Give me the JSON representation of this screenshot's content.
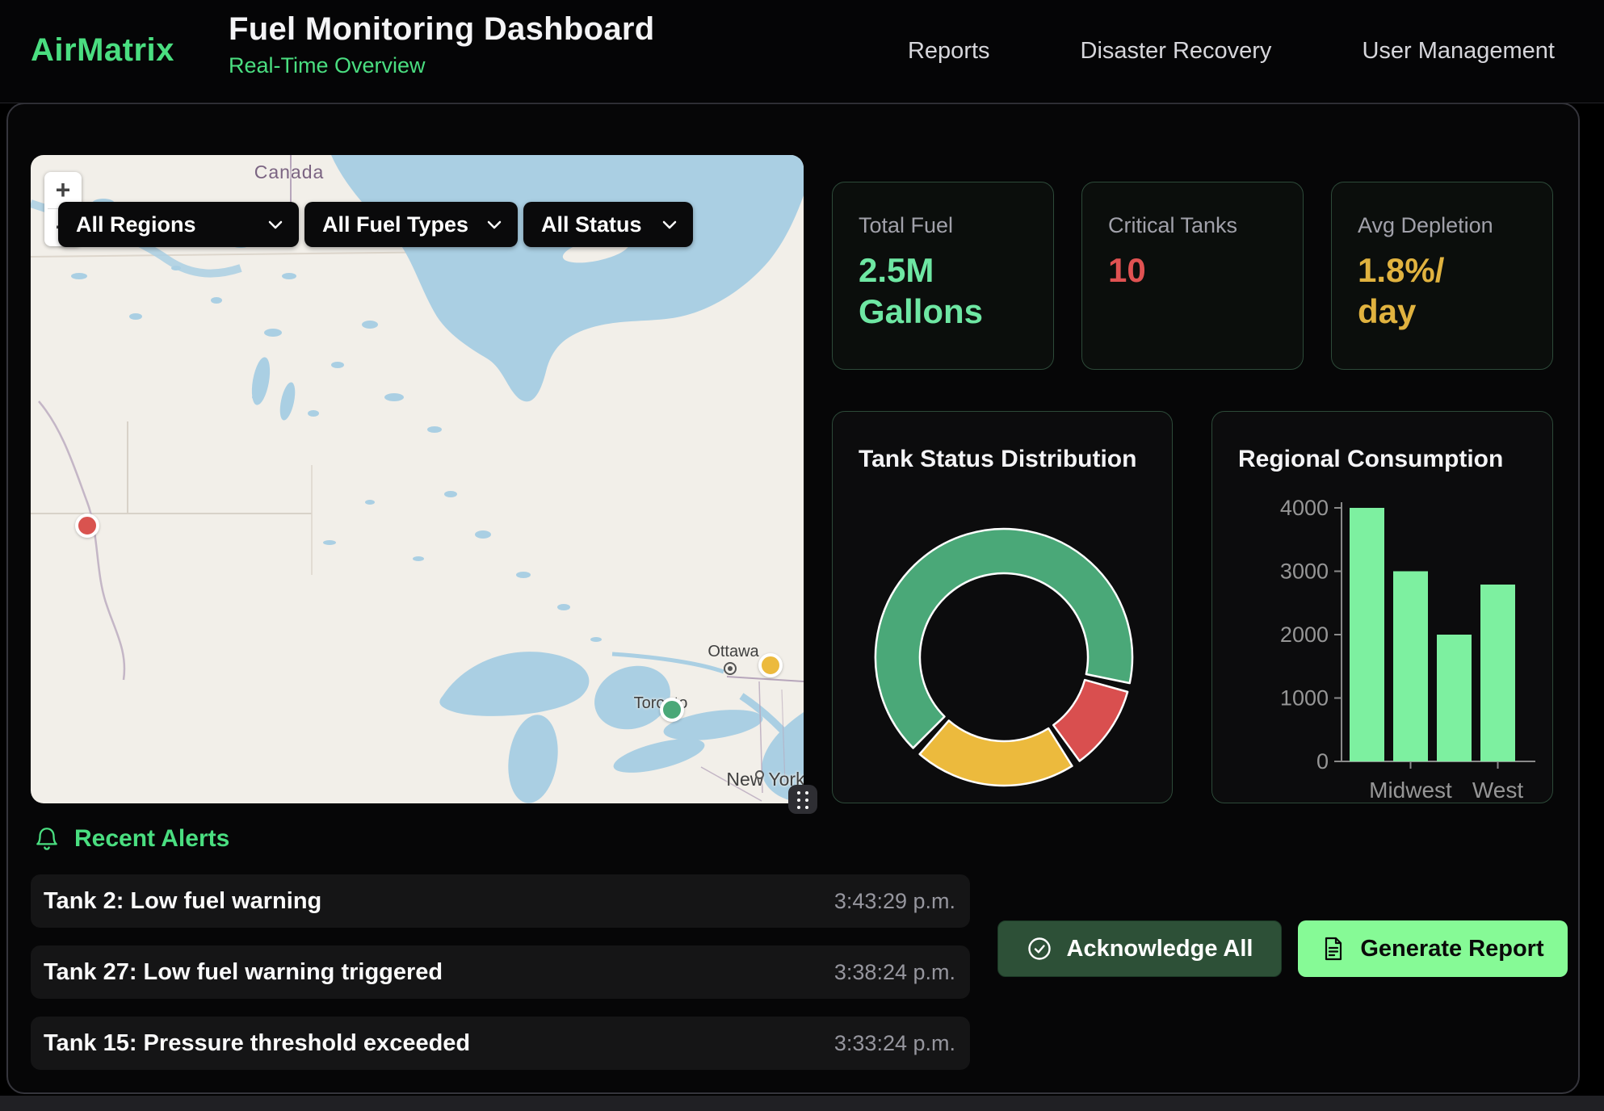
{
  "header": {
    "logo": "AirMatrix",
    "title": "Fuel Monitoring Dashboard",
    "subtitle": "Real-Time Overview",
    "nav": [
      {
        "label": "Reports"
      },
      {
        "label": "Disaster Recovery"
      },
      {
        "label": "User Management"
      }
    ]
  },
  "map": {
    "filters": [
      {
        "label": "All Regions"
      },
      {
        "label": "All Fuel Types"
      },
      {
        "label": "All Status"
      }
    ],
    "zoom_in_label": "+",
    "zoom_out_label": "−",
    "place_labels": {
      "country": "Canada",
      "ottawa": "Ottawa",
      "toronto": "Toronto",
      "new_york": "New York"
    },
    "markers": [
      {
        "status": "critical",
        "color": "#d9534f"
      },
      {
        "status": "warning",
        "color": "#ecba3d"
      },
      {
        "status": "normal",
        "color": "#4aa878"
      }
    ]
  },
  "stats": [
    {
      "label": "Total Fuel",
      "value": "2.5M Gallons",
      "color": "#6ee7a3"
    },
    {
      "label": "Critical Tanks",
      "value": "10",
      "color": "#e05252"
    },
    {
      "label": "Avg Depletion",
      "value": "1.8%/day",
      "color": "#e0b23f"
    }
  ],
  "chart_data": [
    {
      "type": "pie",
      "donut": true,
      "title": "Tank Status Distribution",
      "start_angle_deg": 225,
      "gap_deg": 4,
      "border_color": "#ffffff",
      "legend": "none",
      "segments": [
        {
          "name": "green-normal",
          "percent": 68,
          "color": "#4aa878"
        },
        {
          "name": "red-critical",
          "percent": 11,
          "color": "#d94f4f"
        },
        {
          "name": "yellow-warning",
          "percent": 21,
          "color": "#ecba3d"
        }
      ]
    },
    {
      "type": "bar",
      "title": "Regional Consumption",
      "categories": [
        "",
        "Midwest",
        "",
        "West"
      ],
      "values": [
        4000,
        3000,
        2000,
        2790
      ],
      "bar_color": "#7df0a0",
      "ylim": [
        0,
        4000
      ],
      "yticks": [
        0,
        1000,
        2000,
        3000,
        4000
      ],
      "grid": false,
      "axis_color": "#8a8a8a",
      "tick_label_color": "#969696"
    }
  ],
  "alerts": {
    "heading": "Recent Alerts",
    "items": [
      {
        "message": "Tank 2: Low fuel warning",
        "time": "3:43:29 p.m."
      },
      {
        "message": "Tank 27: Low fuel warning triggered",
        "time": "3:38:24 p.m."
      },
      {
        "message": "Tank 15: Pressure threshold exceeded",
        "time": "3:33:24 p.m."
      }
    ]
  },
  "actions": {
    "acknowledge_all": "Acknowledge All",
    "generate_report": "Generate Report"
  },
  "colors": {
    "accent_green": "#4ade80",
    "value_green": "#6ee7a3",
    "critical_red": "#e05252",
    "warning_yellow": "#e0b23f",
    "button_dark_green": "#2d5037",
    "button_light_green": "#86fa96",
    "map_land": "#f2efe9",
    "map_water": "#aacfe3"
  }
}
